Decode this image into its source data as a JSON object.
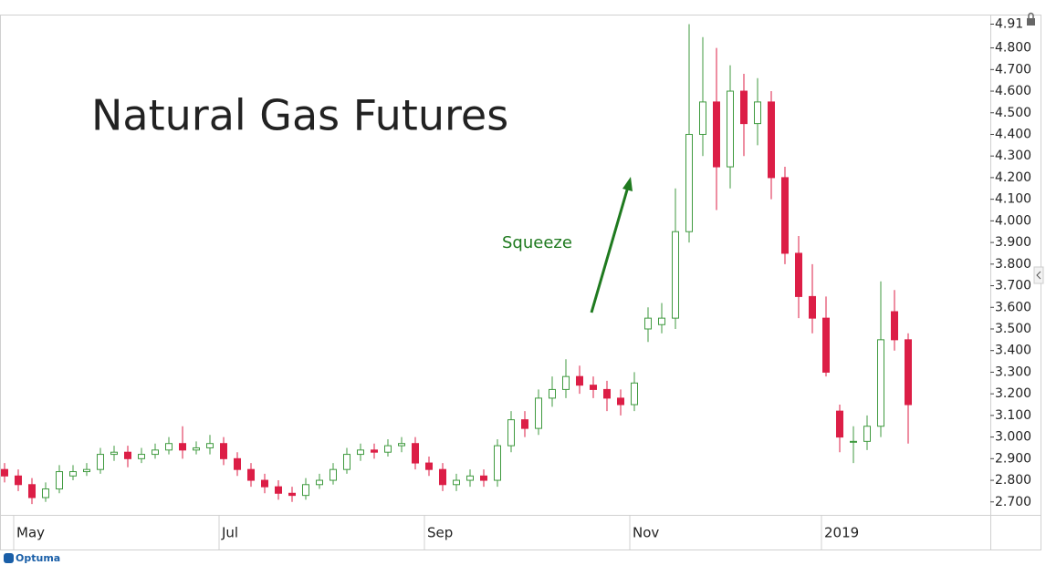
{
  "chart_data": {
    "type": "candlestick",
    "title": "Natural Gas Futures",
    "annotation": "Squeeze",
    "brand": "Optuma",
    "up_color": "#3f9a3f",
    "down_color": "#dc1e46",
    "annotation_color": "#1f7a1f",
    "categories": [
      null,
      "May",
      null,
      null,
      null,
      null,
      null,
      null,
      null,
      null,
      null,
      null,
      null,
      null,
      null,
      null,
      "Jul",
      null,
      null,
      null,
      null,
      null,
      null,
      null,
      null,
      null,
      null,
      null,
      null,
      null,
      null,
      "Sep",
      null,
      null,
      null,
      null,
      null,
      null,
      null,
      null,
      null,
      null,
      null,
      null,
      null,
      null,
      "Nov",
      null,
      null,
      null,
      null,
      null,
      null,
      null,
      null,
      null,
      null,
      null,
      null,
      null,
      "2019",
      null,
      null,
      null,
      null,
      null,
      null
    ],
    "open": [
      2.85,
      2.82,
      2.78,
      2.72,
      2.76,
      2.82,
      2.84,
      2.85,
      2.92,
      2.93,
      2.9,
      2.92,
      2.94,
      2.97,
      2.94,
      2.95,
      2.97,
      2.9,
      2.85,
      2.8,
      2.77,
      2.74,
      2.73,
      2.78,
      2.8,
      2.85,
      2.92,
      2.94,
      2.93,
      2.96,
      2.97,
      2.88,
      2.85,
      2.78,
      2.8,
      2.82,
      2.8,
      2.96,
      3.08,
      3.04,
      3.18,
      3.22,
      3.28,
      3.24,
      3.22,
      3.18,
      3.15,
      3.5,
      3.52,
      3.55,
      3.95,
      4.4,
      4.55,
      4.25,
      4.6,
      4.45,
      4.55,
      4.2,
      3.85,
      3.65,
      3.55,
      3.12,
      2.98,
      2.98,
      3.05,
      3.58,
      3.45
    ],
    "high": [
      2.88,
      2.85,
      2.81,
      2.79,
      2.87,
      2.87,
      2.88,
      2.95,
      2.96,
      2.96,
      2.95,
      2.97,
      3.0,
      3.05,
      2.98,
      3.01,
      3.0,
      2.93,
      2.88,
      2.83,
      2.8,
      2.77,
      2.81,
      2.83,
      2.88,
      2.95,
      2.97,
      2.97,
      2.99,
      3.0,
      3.0,
      2.91,
      2.88,
      2.83,
      2.85,
      2.85,
      2.99,
      3.12,
      3.12,
      3.22,
      3.28,
      3.36,
      3.33,
      3.28,
      3.26,
      3.22,
      3.3,
      3.6,
      3.62,
      4.15,
      4.91,
      4.85,
      4.8,
      4.72,
      4.68,
      4.66,
      4.6,
      4.25,
      3.93,
      3.8,
      3.65,
      3.15,
      3.05,
      3.1,
      3.72,
      3.68,
      3.48
    ],
    "low": [
      2.79,
      2.75,
      2.69,
      2.7,
      2.74,
      2.8,
      2.82,
      2.83,
      2.89,
      2.86,
      2.88,
      2.9,
      2.92,
      2.9,
      2.92,
      2.92,
      2.87,
      2.82,
      2.77,
      2.74,
      2.71,
      2.7,
      2.71,
      2.76,
      2.78,
      2.83,
      2.89,
      2.9,
      2.91,
      2.93,
      2.85,
      2.82,
      2.75,
      2.75,
      2.77,
      2.77,
      2.77,
      2.93,
      3.0,
      3.01,
      3.14,
      3.18,
      3.2,
      3.18,
      3.12,
      3.1,
      3.12,
      3.44,
      3.48,
      3.5,
      3.9,
      4.3,
      4.05,
      4.15,
      4.3,
      4.35,
      4.1,
      3.8,
      3.55,
      3.48,
      3.28,
      2.93,
      2.88,
      2.94,
      3.0,
      3.4,
      2.97
    ],
    "close": [
      2.82,
      2.78,
      2.72,
      2.76,
      2.84,
      2.84,
      2.85,
      2.92,
      2.93,
      2.9,
      2.92,
      2.94,
      2.97,
      2.94,
      2.95,
      2.97,
      2.9,
      2.85,
      2.8,
      2.77,
      2.74,
      2.73,
      2.78,
      2.8,
      2.85,
      2.92,
      2.94,
      2.93,
      2.96,
      2.97,
      2.88,
      2.85,
      2.78,
      2.8,
      2.82,
      2.8,
      2.96,
      3.08,
      3.04,
      3.18,
      3.22,
      3.28,
      3.24,
      3.22,
      3.18,
      3.15,
      3.25,
      3.55,
      3.55,
      3.95,
      4.4,
      4.55,
      4.25,
      4.6,
      4.45,
      4.55,
      4.2,
      3.85,
      3.65,
      3.55,
      3.3,
      3.0,
      2.98,
      3.05,
      3.45,
      3.45,
      3.15
    ],
    "ylim": [
      2.64,
      4.95
    ],
    "yticks": [
      {
        "value": 2.7,
        "label": "2.700"
      },
      {
        "value": 2.8,
        "label": "2.800"
      },
      {
        "value": 2.9,
        "label": "2.900"
      },
      {
        "value": 3.0,
        "label": "3.000"
      },
      {
        "value": 3.1,
        "label": "3.100"
      },
      {
        "value": 3.2,
        "label": "3.200"
      },
      {
        "value": 3.3,
        "label": "3.300"
      },
      {
        "value": 3.4,
        "label": "3.400"
      },
      {
        "value": 3.5,
        "label": "3.500"
      },
      {
        "value": 3.6,
        "label": "3.600"
      },
      {
        "value": 3.7,
        "label": "3.700"
      },
      {
        "value": 3.8,
        "label": "3.800"
      },
      {
        "value": 3.9,
        "label": "3.900"
      },
      {
        "value": 4.0,
        "label": "4.000"
      },
      {
        "value": 4.1,
        "label": "4.100"
      },
      {
        "value": 4.2,
        "label": "4.200"
      },
      {
        "value": 4.3,
        "label": "4.300"
      },
      {
        "value": 4.4,
        "label": "4.400"
      },
      {
        "value": 4.5,
        "label": "4.500"
      },
      {
        "value": 4.6,
        "label": "4.600"
      },
      {
        "value": 4.7,
        "label": "4.700"
      },
      {
        "value": 4.8,
        "label": "4.800"
      },
      4.91
    ]
  }
}
